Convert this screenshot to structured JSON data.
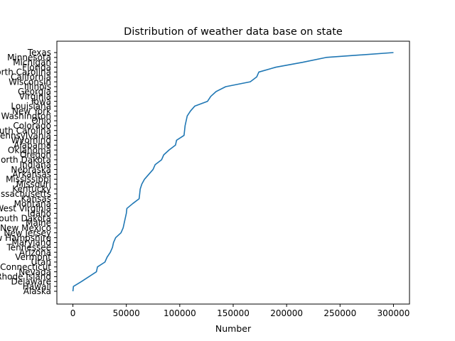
{
  "chart_data": {
    "type": "line",
    "title": "Distribution of weather data base on state",
    "xlabel": "Number",
    "ylabel": "",
    "xlim": [
      -15000,
      315000
    ],
    "x_ticks": [
      0,
      50000,
      100000,
      150000,
      200000,
      250000,
      300000
    ],
    "x_tick_labels": [
      "0",
      "50000",
      "100000",
      "150000",
      "200000",
      "250000",
      "300000"
    ],
    "grid": false,
    "line_color": "#1f77b4",
    "categories": [
      "Alaska",
      "Hawaii",
      "Delaware",
      "Rhode Island",
      "Nevada",
      "Connecticut",
      "Utah",
      "Vermont",
      "Arizona",
      "Tennessee",
      "Maryland",
      "New Hampshire",
      "New Jersey",
      "New Mexico",
      "Maine",
      "South Dakota",
      "Idaho",
      "West Virginia",
      "Montana",
      "Kansas",
      "Massachusetts",
      "Kentucky",
      "Missouri",
      "Mississippi",
      "Arkansas",
      "Nebraska",
      "Indiana",
      "North Dakota",
      "Oregon",
      "Oklahoma",
      "Alabama",
      "Wyoming",
      "Pennsylvania",
      "South Carolina",
      "Colorado",
      "Ohio",
      "Washington",
      "New York",
      "Louisiana",
      "Iowa",
      "Virginia",
      "Georgia",
      "Illinois",
      "Wisconsin",
      "California",
      "North Carolina",
      "Florida",
      "Michigan",
      "Minnesota",
      "Texas"
    ],
    "values": [
      0,
      500,
      8000,
      15000,
      22000,
      23000,
      30000,
      32000,
      35000,
      37000,
      38000,
      40000,
      45000,
      47000,
      48000,
      49000,
      50000,
      50500,
      56000,
      62000,
      62500,
      63000,
      64500,
      67000,
      71000,
      75000,
      77000,
      83000,
      85000,
      90000,
      96000,
      97000,
      104000,
      104500,
      105000,
      106000,
      107000,
      110000,
      114000,
      126000,
      129000,
      134000,
      143000,
      166000,
      172000,
      174000,
      190000,
      215000,
      237000,
      300000
    ]
  }
}
